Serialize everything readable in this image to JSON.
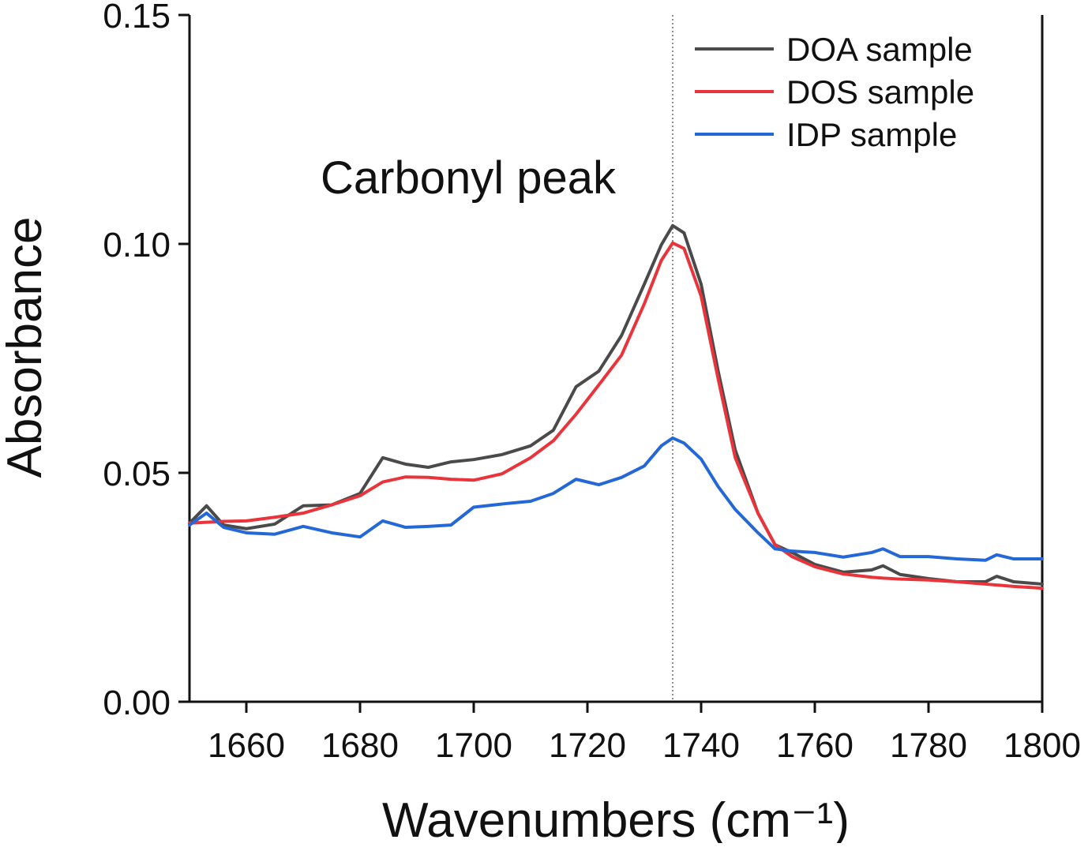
{
  "chart_data": {
    "type": "line",
    "xlabel": "Wavenumbers (cm⁻¹)",
    "ylabel": "Absorbance",
    "annotation": "Carbonyl peak",
    "reference_x": 1735,
    "xlim": [
      1650,
      1800
    ],
    "xticks": [
      1660,
      1680,
      1700,
      1720,
      1740,
      1760,
      1780,
      1800
    ],
    "ylim": [
      0,
      0.15
    ],
    "yticks": [
      {
        "value": 0,
        "label": "0.00"
      },
      0.05,
      {
        "value": 0.1,
        "label": "0.10"
      },
      0.15
    ],
    "legend": "upper right",
    "x": [
      1650,
      1653,
      1656,
      1660,
      1665,
      1670,
      1675,
      1680,
      1684,
      1688,
      1692,
      1696,
      1700,
      1705,
      1710,
      1714,
      1718,
      1722,
      1726,
      1730,
      1733,
      1735,
      1737,
      1740,
      1743,
      1746,
      1750,
      1753,
      1756,
      1760,
      1765,
      1770,
      1772,
      1775,
      1780,
      1785,
      1790,
      1792,
      1795,
      1800
    ],
    "series": [
      {
        "name": "DOA sample",
        "color": "#4a4a4a",
        "values": [
          0.039,
          0.0428,
          0.0386,
          0.0378,
          0.0388,
          0.0428,
          0.043,
          0.0455,
          0.0533,
          0.0519,
          0.0512,
          0.0524,
          0.0529,
          0.054,
          0.0559,
          0.0593,
          0.0688,
          0.0722,
          0.08,
          0.0912,
          0.0998,
          0.104,
          0.1024,
          0.0912,
          0.0722,
          0.055,
          0.0412,
          0.0343,
          0.0326,
          0.03,
          0.0283,
          0.0288,
          0.0297,
          0.0278,
          0.0269,
          0.0262,
          0.0262,
          0.0274,
          0.0262,
          0.0257
        ]
      },
      {
        "name": "DOS sample",
        "color": "#e8343a",
        "values": [
          0.039,
          0.0392,
          0.0394,
          0.0395,
          0.0403,
          0.0412,
          0.043,
          0.045,
          0.048,
          0.0491,
          0.049,
          0.0486,
          0.0484,
          0.0498,
          0.0533,
          0.057,
          0.0628,
          0.0692,
          0.0757,
          0.0869,
          0.0964,
          0.1002,
          0.099,
          0.0886,
          0.0705,
          0.0533,
          0.0412,
          0.0343,
          0.0317,
          0.0295,
          0.0279,
          0.0272,
          0.027,
          0.0268,
          0.0266,
          0.0262,
          0.0257,
          0.0255,
          0.0252,
          0.0248
        ]
      },
      {
        "name": "IDP sample",
        "color": "#2468d8",
        "values": [
          0.0386,
          0.0412,
          0.0381,
          0.0369,
          0.0366,
          0.0383,
          0.0369,
          0.036,
          0.0395,
          0.0381,
          0.0383,
          0.0386,
          0.0425,
          0.0432,
          0.0438,
          0.0455,
          0.0486,
          0.0474,
          0.049,
          0.0515,
          0.0559,
          0.0576,
          0.0565,
          0.053,
          0.047,
          0.042,
          0.0369,
          0.0334,
          0.0329,
          0.0326,
          0.0316,
          0.0326,
          0.0334,
          0.0317,
          0.0317,
          0.0312,
          0.0309,
          0.0321,
          0.0312,
          0.0312
        ]
      }
    ]
  }
}
